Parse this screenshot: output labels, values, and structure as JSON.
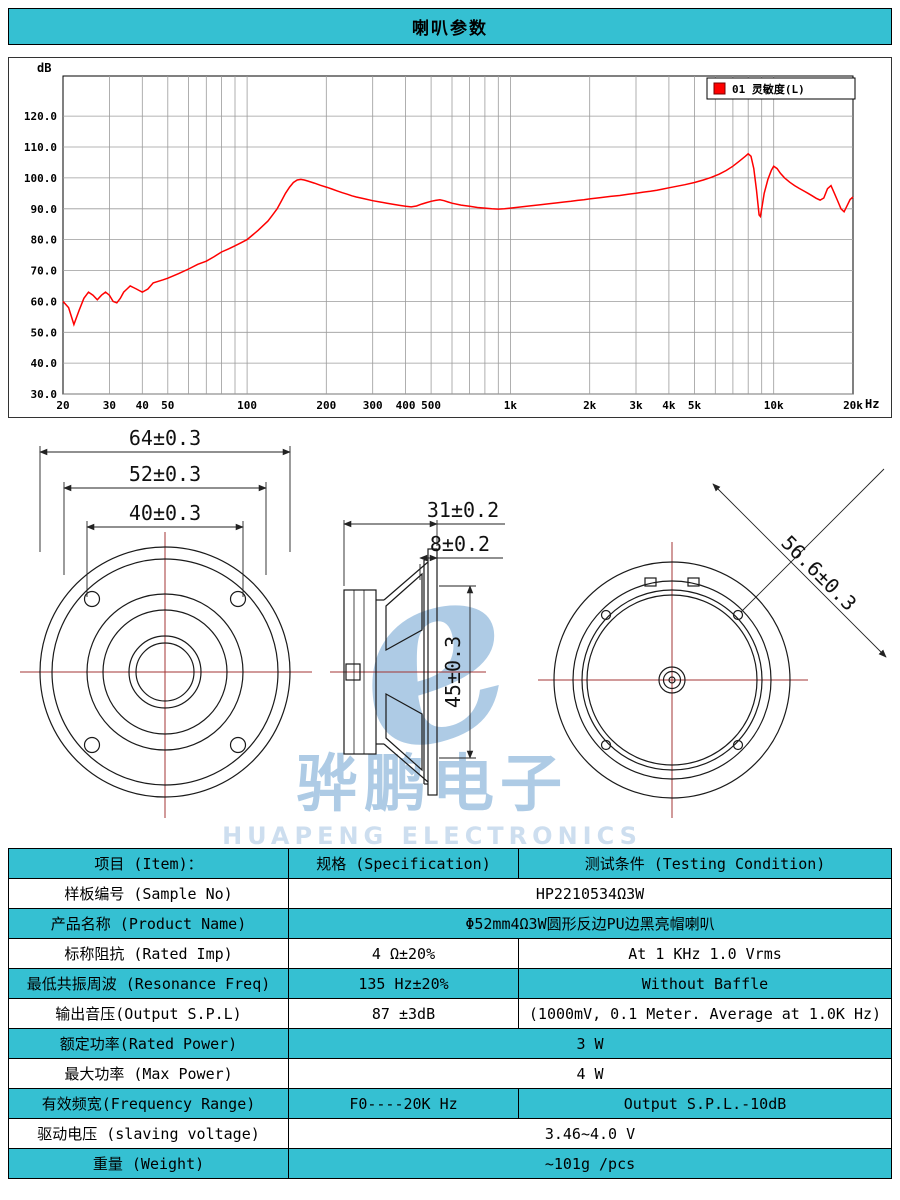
{
  "header": {
    "title": "喇叭参数"
  },
  "colors": {
    "cyan": "#35c0d2",
    "curve": "#ff0000",
    "grid": "#9b9b9b",
    "centerline": "#a33434",
    "watermark": "#8fb8dc"
  },
  "chart_data": {
    "type": "line",
    "legend": "01 灵敏度(L)",
    "legend_color": "#ff0000",
    "ylabel": "dB",
    "xlabel": "Hz",
    "x_scale": "log",
    "grid": true,
    "xlim": [
      20,
      20000
    ],
    "ylim": [
      30,
      133
    ],
    "y_ticks": [
      {
        "v": 120,
        "label": "120.0"
      },
      {
        "v": 110,
        "label": "110.0"
      },
      {
        "v": 100,
        "label": "100.0"
      },
      {
        "v": 90,
        "label": "90.0"
      },
      {
        "v": 80,
        "label": "80.0"
      },
      {
        "v": 70,
        "label": "70.0"
      },
      {
        "v": 60,
        "label": "60.0"
      },
      {
        "v": 50,
        "label": "50.0"
      },
      {
        "v": 40,
        "label": "40.0"
      },
      {
        "v": 30,
        "label": "30.0"
      }
    ],
    "x_ticks": [
      {
        "f": 20,
        "label": "20"
      },
      {
        "f": 30,
        "label": "30"
      },
      {
        "f": 40,
        "label": "40"
      },
      {
        "f": 50,
        "label": "50"
      },
      {
        "f": 100,
        "label": "100"
      },
      {
        "f": 200,
        "label": "200"
      },
      {
        "f": 300,
        "label": "300"
      },
      {
        "f": 400,
        "label": "400"
      },
      {
        "f": 500,
        "label": "500"
      },
      {
        "f": 1000,
        "label": "1k"
      },
      {
        "f": 2000,
        "label": "2k"
      },
      {
        "f": 3000,
        "label": "3k"
      },
      {
        "f": 4000,
        "label": "4k"
      },
      {
        "f": 5000,
        "label": "5k"
      },
      {
        "f": 10000,
        "label": "10k"
      },
      {
        "f": 20000,
        "label": "20k"
      }
    ],
    "grid_freqs": [
      20,
      30,
      40,
      50,
      60,
      70,
      80,
      90,
      100,
      200,
      300,
      400,
      500,
      600,
      700,
      800,
      900,
      1000,
      2000,
      3000,
      4000,
      5000,
      6000,
      7000,
      8000,
      9000,
      10000,
      20000
    ],
    "points": [
      [
        20,
        60
      ],
      [
        21,
        58
      ],
      [
        22,
        52.5
      ],
      [
        23,
        57
      ],
      [
        24,
        61
      ],
      [
        25,
        63
      ],
      [
        26,
        62
      ],
      [
        27,
        60.5
      ],
      [
        28,
        62
      ],
      [
        29,
        63
      ],
      [
        30,
        62
      ],
      [
        31,
        60
      ],
      [
        32,
        59.5
      ],
      [
        33,
        61
      ],
      [
        34,
        63
      ],
      [
        35,
        64
      ],
      [
        36,
        65
      ],
      [
        37,
        64.5
      ],
      [
        38,
        64
      ],
      [
        39,
        63.5
      ],
      [
        40,
        63
      ],
      [
        42,
        64
      ],
      [
        44,
        66
      ],
      [
        46,
        66.5
      ],
      [
        48,
        67
      ],
      [
        50,
        67.5
      ],
      [
        55,
        69
      ],
      [
        60,
        70.5
      ],
      [
        65,
        72
      ],
      [
        70,
        73
      ],
      [
        75,
        74.5
      ],
      [
        80,
        76
      ],
      [
        85,
        77
      ],
      [
        90,
        78
      ],
      [
        95,
        79
      ],
      [
        100,
        80
      ],
      [
        105,
        81.5
      ],
      [
        110,
        83
      ],
      [
        115,
        84.5
      ],
      [
        120,
        86
      ],
      [
        125,
        88
      ],
      [
        130,
        90
      ],
      [
        135,
        92.5
      ],
      [
        140,
        95
      ],
      [
        145,
        97
      ],
      [
        150,
        98.5
      ],
      [
        155,
        99.3
      ],
      [
        160,
        99.5
      ],
      [
        165,
        99.3
      ],
      [
        170,
        99
      ],
      [
        180,
        98.3
      ],
      [
        190,
        97.6
      ],
      [
        200,
        97
      ],
      [
        210,
        96.4
      ],
      [
        220,
        95.8
      ],
      [
        230,
        95.2
      ],
      [
        240,
        94.7
      ],
      [
        250,
        94.2
      ],
      [
        260,
        93.8
      ],
      [
        280,
        93.2
      ],
      [
        300,
        92.6
      ],
      [
        320,
        92.2
      ],
      [
        340,
        91.8
      ],
      [
        360,
        91.4
      ],
      [
        380,
        91.1
      ],
      [
        400,
        90.8
      ],
      [
        420,
        90.6
      ],
      [
        440,
        90.9
      ],
      [
        460,
        91.5
      ],
      [
        480,
        92
      ],
      [
        500,
        92.4
      ],
      [
        520,
        92.7
      ],
      [
        540,
        92.9
      ],
      [
        560,
        92.6
      ],
      [
        580,
        92.2
      ],
      [
        600,
        91.8
      ],
      [
        650,
        91.2
      ],
      [
        700,
        90.8
      ],
      [
        750,
        90.4
      ],
      [
        800,
        90.2
      ],
      [
        850,
        90
      ],
      [
        900,
        89.9
      ],
      [
        950,
        90
      ],
      [
        1000,
        90.2
      ],
      [
        1100,
        90.6
      ],
      [
        1200,
        91
      ],
      [
        1300,
        91.3
      ],
      [
        1400,
        91.6
      ],
      [
        1500,
        91.9
      ],
      [
        1600,
        92.2
      ],
      [
        1700,
        92.4
      ],
      [
        1800,
        92.7
      ],
      [
        1900,
        92.9
      ],
      [
        2000,
        93.2
      ],
      [
        2200,
        93.6
      ],
      [
        2400,
        94
      ],
      [
        2600,
        94.3
      ],
      [
        2800,
        94.7
      ],
      [
        3000,
        95
      ],
      [
        3200,
        95.4
      ],
      [
        3400,
        95.7
      ],
      [
        3600,
        96
      ],
      [
        3800,
        96.4
      ],
      [
        4000,
        96.8
      ],
      [
        4300,
        97.3
      ],
      [
        4600,
        97.8
      ],
      [
        5000,
        98.5
      ],
      [
        5400,
        99.3
      ],
      [
        5800,
        100.2
      ],
      [
        6200,
        101.2
      ],
      [
        6600,
        102.4
      ],
      [
        7000,
        103.8
      ],
      [
        7400,
        105.4
      ],
      [
        7800,
        107
      ],
      [
        8000,
        107.8
      ],
      [
        8200,
        107
      ],
      [
        8400,
        103
      ],
      [
        8600,
        96
      ],
      [
        8800,
        88
      ],
      [
        8900,
        87.5
      ],
      [
        9000,
        90
      ],
      [
        9200,
        95
      ],
      [
        9500,
        99.5
      ],
      [
        9800,
        102.5
      ],
      [
        10000,
        103.8
      ],
      [
        10300,
        103
      ],
      [
        10600,
        101.5
      ],
      [
        11000,
        100
      ],
      [
        11500,
        98.6
      ],
      [
        12000,
        97.5
      ],
      [
        12500,
        96.6
      ],
      [
        13000,
        95.8
      ],
      [
        13500,
        95
      ],
      [
        14000,
        94.2
      ],
      [
        14500,
        93.4
      ],
      [
        15000,
        92.8
      ],
      [
        15500,
        93.5
      ],
      [
        16000,
        96.5
      ],
      [
        16500,
        97.5
      ],
      [
        17000,
        95
      ],
      [
        17500,
        92.5
      ],
      [
        18000,
        90
      ],
      [
        18500,
        89
      ],
      [
        19000,
        91
      ],
      [
        19500,
        93
      ],
      [
        20000,
        93.8
      ]
    ]
  },
  "drawings": {
    "front_view": {
      "dim_outer": "64±0.3",
      "dim_mid": "52±0.3",
      "dim_inner": "40±0.3"
    },
    "side_view": {
      "dim_depth": "31±0.2",
      "dim_flange": "8±0.2",
      "dim_height": "45±0.3"
    },
    "back_view": {
      "dim_diagonal": "56.6±0.3"
    },
    "watermark": {
      "logo_letter": "e",
      "brand_cn": "骅鹏电子",
      "brand_en": "HUAPENG ELECTRONICS"
    }
  },
  "table": {
    "header": [
      "项目 (Item)：",
      "规格 (Specification)",
      "测试条件 (Testing Condition)"
    ],
    "rows": [
      {
        "shaded": false,
        "cells": [
          {
            "t": "样板编号 (Sample No)",
            "s": 1
          },
          {
            "t": "HP2210534Ω3W",
            "s": 2
          }
        ]
      },
      {
        "shaded": true,
        "cells": [
          {
            "t": "产品名称 (Product Name)",
            "s": 1
          },
          {
            "t": "Φ52mm4Ω3W圆形反边PU边黑亮帽喇叭",
            "s": 2
          }
        ]
      },
      {
        "shaded": false,
        "cells": [
          {
            "t": "标称阻抗 (Rated Imp)",
            "s": 1
          },
          {
            "t": "4 Ω±20%",
            "s": 1
          },
          {
            "t": "At 1 KHz  1.0 Vrms",
            "s": 1
          }
        ]
      },
      {
        "shaded": true,
        "cells": [
          {
            "t": "最低共振周波 (Resonance Freq)",
            "s": 1
          },
          {
            "t": "135 Hz±20%",
            "s": 1
          },
          {
            "t": "Without Baffle",
            "s": 1
          }
        ]
      },
      {
        "shaded": false,
        "cells": [
          {
            "t": "输出音压(Output S.P.L)",
            "s": 1
          },
          {
            "t": "87 ±3dB",
            "s": 1
          },
          {
            "t": "(1000mV, 0.1 Meter. Average at 1.0K Hz)",
            "s": 1
          }
        ]
      },
      {
        "shaded": true,
        "cells": [
          {
            "t": "额定功率(Rated Power)",
            "s": 1
          },
          {
            "t": "3 W",
            "s": 2
          }
        ]
      },
      {
        "shaded": false,
        "cells": [
          {
            "t": "最大功率 (Max Power)",
            "s": 1
          },
          {
            "t": "4 W",
            "s": 2
          }
        ]
      },
      {
        "shaded": true,
        "cells": [
          {
            "t": "有效频宽(Frequency Range)",
            "s": 1
          },
          {
            "t": "F0----20K Hz",
            "s": 1
          },
          {
            "t": "Output S.P.L.-10dB",
            "s": 1
          }
        ]
      },
      {
        "shaded": false,
        "cells": [
          {
            "t": "驱动电压 (slaving voltage)",
            "s": 1
          },
          {
            "t": "3.46~4.0 V",
            "s": 2
          }
        ]
      },
      {
        "shaded": true,
        "cells": [
          {
            "t": "重量 (Weight)",
            "s": 1
          },
          {
            "t": "~101g /pcs",
            "s": 2
          }
        ]
      }
    ]
  }
}
